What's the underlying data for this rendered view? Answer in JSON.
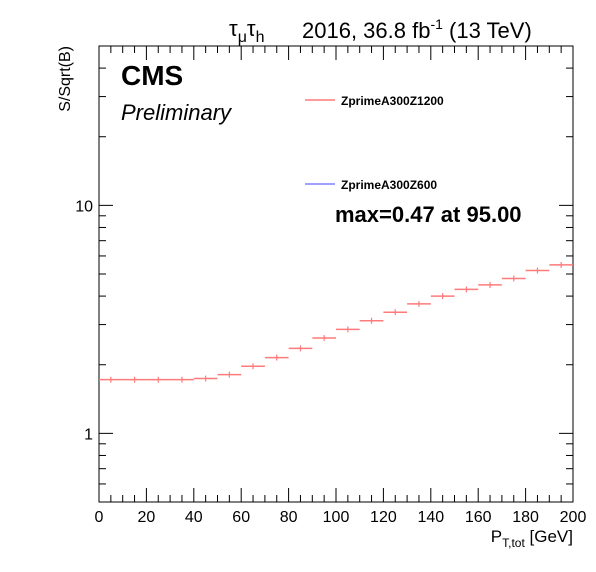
{
  "header": {
    "channel_main": "τ",
    "channel_sub1": "μ",
    "channel_main2": "τ",
    "channel_sub2": "h",
    "lumi_prefix": "2016, 36.8 fb",
    "lumi_exp": "-1",
    "lumi_suffix": " (13 TeV)"
  },
  "labels": {
    "cms": "CMS",
    "preliminary": "Preliminary",
    "max_annotation": "max=0.47 at 95.00"
  },
  "chart_data": {
    "type": "line",
    "ylabel": "S/Sqrt(B)",
    "xlabel_main": "P",
    "xlabel_sub": "T,tot",
    "xlabel_unit": "[GeV]",
    "xlim": [
      0,
      200
    ],
    "ylim": [
      0.5,
      50
    ],
    "y_scale": "log",
    "x_ticks": [
      "0",
      "20",
      "40",
      "60",
      "80",
      "100",
      "120",
      "140",
      "160",
      "180",
      "200"
    ],
    "y_ticks": [
      "1",
      "10"
    ],
    "legend_position": "top-right",
    "series": [
      {
        "name": "ZprimeA300Z1200",
        "color": "#ff7a7a",
        "bin_width": 10,
        "x": [
          5,
          15,
          25,
          35,
          45,
          55,
          65,
          75,
          85,
          95,
          105,
          115,
          125,
          135,
          145,
          155,
          165,
          175,
          185,
          195
        ],
        "values": [
          1.72,
          1.72,
          1.72,
          1.72,
          1.74,
          1.81,
          1.97,
          2.15,
          2.36,
          2.62,
          2.86,
          3.12,
          3.4,
          3.7,
          4.0,
          4.28,
          4.48,
          4.78,
          5.18,
          5.48
        ]
      },
      {
        "name": "ZprimeA300Z600",
        "color": "#8080ff",
        "bin_width": 10,
        "x": [],
        "values": []
      }
    ]
  }
}
